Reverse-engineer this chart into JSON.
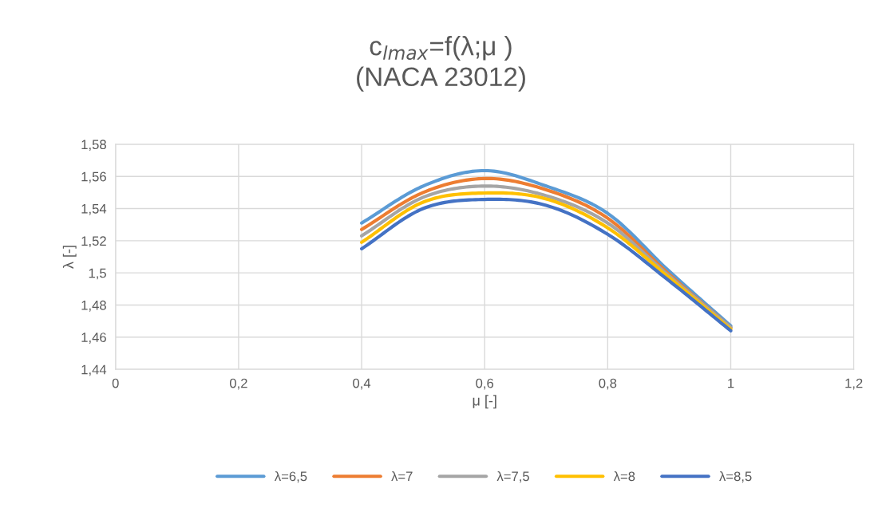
{
  "chart_data": {
    "type": "line",
    "title": "c$_{lmax}$=f(λ;μ )\n(NACA 23012)",
    "xlabel": "μ [-]",
    "ylabel": "λ [-]",
    "x": [
      0.4,
      0.5,
      0.6,
      0.7,
      0.8,
      0.9,
      1.0
    ],
    "series": [
      {
        "name": "λ=6,5",
        "color": "#5b9bd5",
        "values": [
          1.531,
          1.554,
          1.5636,
          1.554,
          1.537,
          1.501,
          1.467
        ]
      },
      {
        "name": "λ=7",
        "color": "#ed7d31",
        "values": [
          1.527,
          1.55,
          1.5587,
          1.5517,
          1.534,
          1.499,
          1.466
        ]
      },
      {
        "name": "λ=7,5",
        "color": "#a5a5a5",
        "values": [
          1.523,
          1.547,
          1.554,
          1.548,
          1.531,
          1.498,
          1.466
        ]
      },
      {
        "name": "λ=8",
        "color": "#ffc000",
        "values": [
          1.519,
          1.544,
          1.5497,
          1.546,
          1.528,
          1.497,
          1.465
        ]
      },
      {
        "name": "λ=8,5",
        "color": "#4472c4",
        "values": [
          1.515,
          1.54,
          1.5457,
          1.542,
          1.524,
          1.495,
          1.464
        ]
      }
    ],
    "xlim": [
      0,
      1.2
    ],
    "xticks": [
      0,
      {
        "value": 0.2,
        "label": "0,2"
      },
      {
        "value": 0.4,
        "label": "0,4"
      },
      {
        "value": 0.6,
        "label": "0,6"
      },
      {
        "value": 0.8,
        "label": "0,8"
      },
      1,
      {
        "value": 1.2,
        "label": "1,2"
      }
    ],
    "ylim": [
      1.44,
      1.58
    ],
    "yticks": [
      {
        "value": 1.44,
        "label": "1,44"
      },
      {
        "value": 1.46,
        "label": "1,46"
      },
      {
        "value": 1.48,
        "label": "1,48"
      },
      {
        "value": 1.5,
        "label": "1,5"
      },
      {
        "value": 1.52,
        "label": "1,52"
      },
      {
        "value": 1.54,
        "label": "1,54"
      },
      {
        "value": 1.56,
        "label": "1,56"
      },
      {
        "value": 1.58,
        "label": "1,58"
      }
    ],
    "grid": true,
    "legend": "bottom",
    "marker": "none",
    "line_style": "solid"
  }
}
